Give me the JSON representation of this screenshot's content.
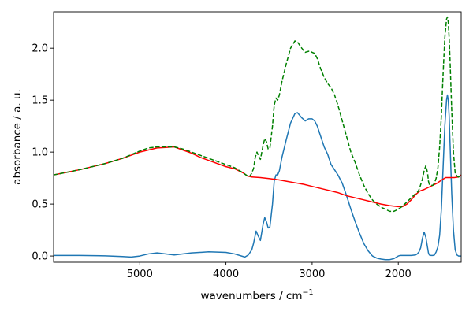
{
  "chart_data": {
    "type": "line",
    "title": "",
    "xlabel": "wavenumbers / cm",
    "xlabel_superscript": "−1",
    "ylabel": "absorbance / a. u.",
    "xlim": [
      6000,
      1270
    ],
    "ylim": [
      -0.06,
      2.35
    ],
    "x_inverted": true,
    "grid": false,
    "legend": "none",
    "x_ticks": [
      {
        "value": 5000,
        "label": "5000"
      },
      {
        "value": 4000,
        "label": "4000"
      },
      {
        "value": 3000,
        "label": "3000"
      },
      {
        "value": 2000,
        "label": "2000"
      }
    ],
    "y_ticks": [
      {
        "value": 0.0,
        "label": "0.0"
      },
      {
        "value": 0.5,
        "label": "0.5"
      },
      {
        "value": 1.0,
        "label": "1.0"
      },
      {
        "value": 1.5,
        "label": "1.5"
      },
      {
        "value": 2.0,
        "label": "2.0"
      }
    ],
    "series": [
      {
        "color": "#1f77b4",
        "style": "solid",
        "x": [
          6000,
          5700,
          5400,
          5200,
          5100,
          5000,
          4900,
          4800,
          4600,
          4400,
          4200,
          4000,
          3900,
          3780,
          3740,
          3700,
          3680,
          3650,
          3630,
          3600,
          3570,
          3550,
          3530,
          3510,
          3490,
          3460,
          3440,
          3420,
          3400,
          3380,
          3350,
          3300,
          3250,
          3200,
          3170,
          3120,
          3080,
          3040,
          3020,
          3000,
          2970,
          2940,
          2900,
          2860,
          2820,
          2780,
          2740,
          2700,
          2650,
          2600,
          2550,
          2500,
          2450,
          2400,
          2350,
          2300,
          2250,
          2200,
          2150,
          2100,
          2050,
          2000,
          1980,
          1950,
          1900,
          1850,
          1800,
          1780,
          1760,
          1740,
          1720,
          1700,
          1680,
          1660,
          1650,
          1640,
          1620,
          1600,
          1580,
          1560,
          1540,
          1520,
          1500,
          1480,
          1460,
          1440,
          1430,
          1420,
          1410,
          1400,
          1380,
          1360,
          1340,
          1320,
          1300,
          1270
        ],
        "y": [
          0.005,
          0.005,
          0.002,
          -0.005,
          -0.01,
          0.0,
          0.02,
          0.03,
          0.01,
          0.03,
          0.04,
          0.035,
          0.02,
          -0.01,
          0.01,
          0.06,
          0.12,
          0.24,
          0.2,
          0.15,
          0.3,
          0.37,
          0.33,
          0.27,
          0.28,
          0.5,
          0.72,
          0.78,
          0.78,
          0.82,
          0.95,
          1.12,
          1.28,
          1.37,
          1.38,
          1.33,
          1.3,
          1.32,
          1.32,
          1.32,
          1.3,
          1.25,
          1.15,
          1.05,
          0.98,
          0.88,
          0.83,
          0.78,
          0.7,
          0.58,
          0.45,
          0.33,
          0.22,
          0.12,
          0.05,
          0.0,
          -0.02,
          -0.03,
          -0.035,
          -0.035,
          -0.025,
          0.0,
          0.005,
          0.005,
          0.005,
          0.005,
          0.01,
          0.02,
          0.04,
          0.08,
          0.17,
          0.23,
          0.18,
          0.08,
          0.03,
          0.01,
          0.005,
          0.005,
          0.01,
          0.04,
          0.09,
          0.2,
          0.45,
          0.85,
          1.25,
          1.5,
          1.55,
          1.5,
          1.35,
          1.1,
          0.6,
          0.25,
          0.06,
          0.01,
          0.0,
          0.0
        ]
      },
      {
        "color": "#ff0000",
        "style": "solid",
        "x": [
          6000,
          5700,
          5400,
          5200,
          5000,
          4800,
          4700,
          4600,
          4500,
          4400,
          4300,
          4200,
          4100,
          4000,
          3900,
          3800,
          3750,
          3700,
          3600,
          3500,
          3400,
          3300,
          3200,
          3100,
          3000,
          2900,
          2800,
          2700,
          2600,
          2500,
          2400,
          2300,
          2200,
          2100,
          2000,
          1950,
          1900,
          1850,
          1800,
          1750,
          1700,
          1650,
          1600,
          1550,
          1500,
          1450,
          1400,
          1350,
          1300,
          1270
        ],
        "y": [
          0.78,
          0.83,
          0.89,
          0.94,
          1.0,
          1.04,
          1.045,
          1.05,
          1.02,
          0.99,
          0.95,
          0.92,
          0.89,
          0.86,
          0.84,
          0.8,
          0.77,
          0.76,
          0.755,
          0.745,
          0.735,
          0.72,
          0.705,
          0.69,
          0.67,
          0.65,
          0.63,
          0.61,
          0.58,
          0.56,
          0.54,
          0.52,
          0.5,
          0.485,
          0.475,
          0.475,
          0.5,
          0.54,
          0.59,
          0.625,
          0.64,
          0.66,
          0.68,
          0.7,
          0.73,
          0.755,
          0.755,
          0.755,
          0.76,
          0.78
        ]
      },
      {
        "color": "#008000",
        "style": "dashed",
        "x": [
          6000,
          5700,
          5400,
          5200,
          5000,
          4900,
          4800,
          4700,
          4600,
          4500,
          4400,
          4300,
          4200,
          4100,
          4000,
          3900,
          3800,
          3750,
          3720,
          3700,
          3680,
          3660,
          3640,
          3620,
          3600,
          3570,
          3550,
          3530,
          3510,
          3490,
          3460,
          3440,
          3420,
          3400,
          3380,
          3350,
          3300,
          3250,
          3200,
          3170,
          3120,
          3080,
          3040,
          3020,
          3000,
          2970,
          2940,
          2900,
          2860,
          2820,
          2780,
          2740,
          2700,
          2650,
          2600,
          2550,
          2500,
          2450,
          2400,
          2350,
          2300,
          2250,
          2200,
          2150,
          2100,
          2050,
          2000,
          1950,
          1900,
          1850,
          1800,
          1770,
          1750,
          1720,
          1700,
          1680,
          1660,
          1650,
          1640,
          1620,
          1600,
          1580,
          1560,
          1540,
          1520,
          1500,
          1480,
          1460,
          1440,
          1430,
          1420,
          1410,
          1400,
          1380,
          1360,
          1340,
          1320,
          1300,
          1270
        ],
        "y": [
          0.78,
          0.83,
          0.89,
          0.94,
          1.01,
          1.04,
          1.05,
          1.05,
          1.05,
          1.03,
          1.0,
          0.97,
          0.94,
          0.91,
          0.88,
          0.85,
          0.8,
          0.77,
          0.77,
          0.8,
          0.84,
          0.95,
          1.0,
          0.96,
          0.93,
          1.06,
          1.13,
          1.1,
          1.03,
          1.04,
          1.25,
          1.45,
          1.52,
          1.5,
          1.55,
          1.68,
          1.85,
          2.0,
          2.07,
          2.06,
          2.0,
          1.96,
          1.97,
          1.97,
          1.96,
          1.95,
          1.9,
          1.8,
          1.72,
          1.66,
          1.62,
          1.55,
          1.45,
          1.3,
          1.15,
          1.0,
          0.9,
          0.78,
          0.68,
          0.6,
          0.54,
          0.5,
          0.47,
          0.45,
          0.43,
          0.43,
          0.45,
          0.48,
          0.52,
          0.56,
          0.6,
          0.62,
          0.66,
          0.74,
          0.82,
          0.87,
          0.8,
          0.72,
          0.69,
          0.68,
          0.68,
          0.7,
          0.75,
          0.85,
          1.05,
          1.35,
          1.75,
          2.1,
          2.28,
          2.3,
          2.25,
          2.1,
          1.9,
          1.4,
          1.0,
          0.8,
          0.77,
          0.76,
          0.78
        ]
      }
    ]
  }
}
